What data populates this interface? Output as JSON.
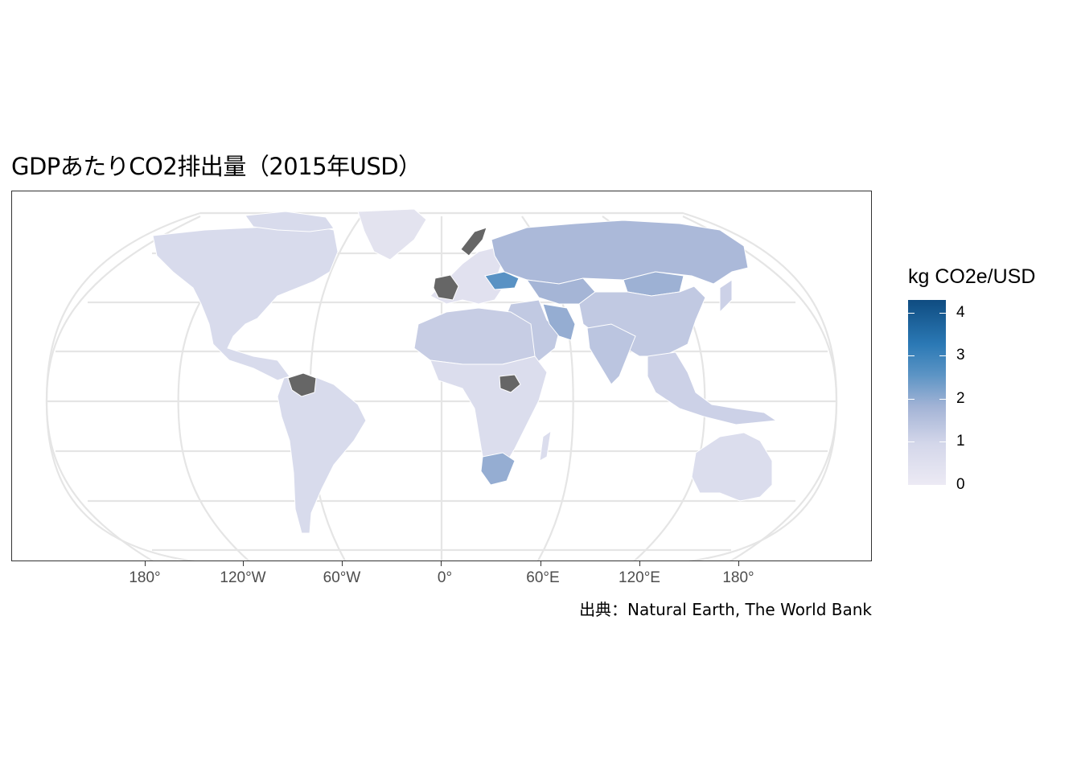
{
  "title": "GDPあたりCO2排出量（2015年USD）",
  "caption": "出典：Natural Earth, The World Bank",
  "legend": {
    "title": "kg CO2e/USD",
    "ticks": [
      {
        "value": 0,
        "label": "0"
      },
      {
        "value": 1,
        "label": "1"
      },
      {
        "value": 2,
        "label": "2"
      },
      {
        "value": 3,
        "label": "3"
      },
      {
        "value": 4,
        "label": "4"
      }
    ],
    "min": 0,
    "max": 4.3,
    "colors": [
      "#eceaf4",
      "#d4d7ea",
      "#a4b4d6",
      "#5a93c4",
      "#2b79b5",
      "#0f4c81"
    ],
    "na_color": "#666666"
  },
  "axis": {
    "x_ticks": [
      "180°",
      "120°W",
      "60°W",
      "0°",
      "60°E",
      "120°E",
      "180°"
    ]
  },
  "map_data": {
    "projection": "Robinson",
    "variable": "kg CO2e per 2015 USD of GDP",
    "regions": [
      {
        "name": "Russia",
        "value": 1.6
      },
      {
        "name": "Ukraine",
        "value": 2.6
      },
      {
        "name": "Iran",
        "value": 1.9
      },
      {
        "name": "Kazakhstan",
        "value": 1.7
      },
      {
        "name": "Mongolia",
        "value": 1.8
      },
      {
        "name": "China",
        "value": 1.2
      },
      {
        "name": "India",
        "value": 1.3
      },
      {
        "name": "South Africa",
        "value": 1.9
      },
      {
        "name": "North America",
        "value": 0.7
      },
      {
        "name": "South America",
        "value": 0.7
      },
      {
        "name": "Australia",
        "value": 0.6
      },
      {
        "name": "Western Europe",
        "value": 0.4
      },
      {
        "name": "North Africa",
        "value": 1.1
      },
      {
        "name": "Sub-Saharan Africa",
        "value": 0.6
      },
      {
        "name": "Middle East",
        "value": 1.2
      },
      {
        "name": "Southeast Asia",
        "value": 1.0
      }
    ]
  }
}
